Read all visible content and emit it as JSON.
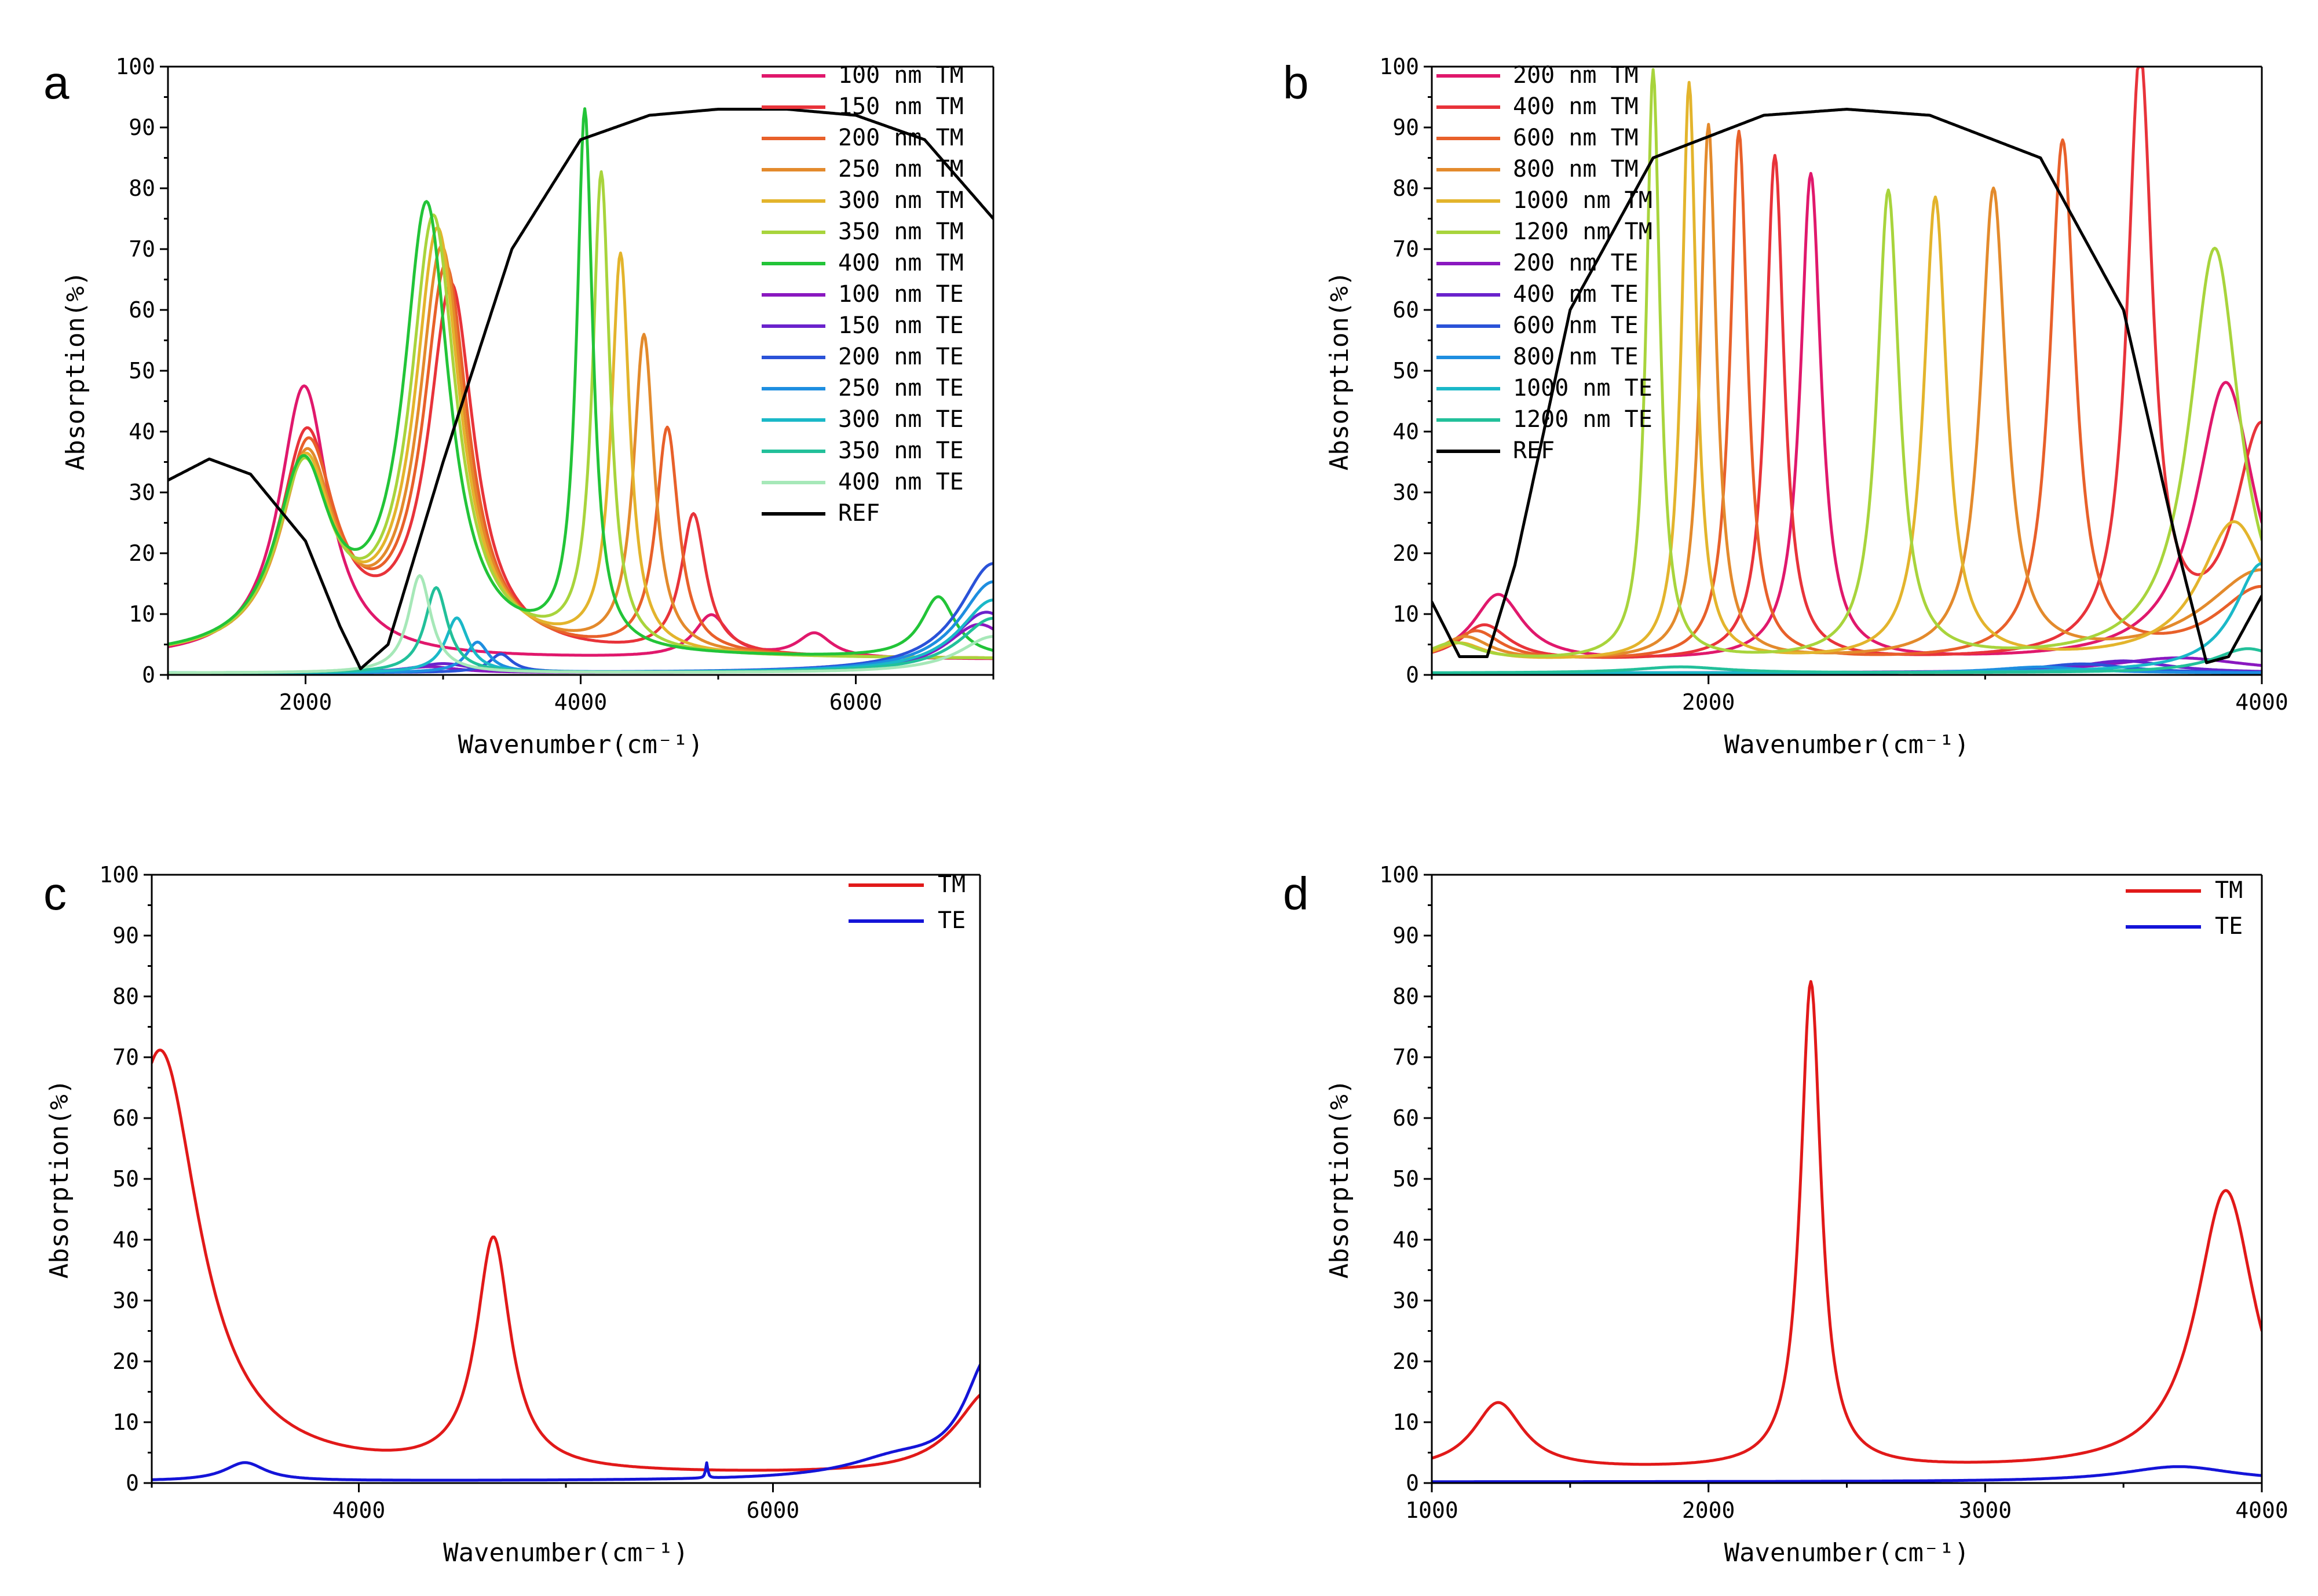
{
  "chart_data": [
    {
      "panel": "a",
      "type": "line",
      "xlabel": "Wavenumber(cm⁻¹)",
      "ylabel": "Absorption(%)",
      "xlim": [
        1000,
        7000
      ],
      "ylim": [
        0,
        100
      ],
      "xticks": [
        2000,
        4000,
        6000
      ],
      "yticks": [
        0,
        10,
        20,
        30,
        40,
        50,
        60,
        70,
        80,
        90,
        100
      ],
      "legend": "top-right",
      "series": [
        {
          "name": "100 nm TM",
          "color": "#e0186c",
          "model": {
            "base": 2.5,
            "peaks": [
              [
                1990,
                45,
                220
              ],
              [
                4950,
                7,
                150
              ],
              [
                5700,
                4,
                150
              ]
            ]
          }
        },
        {
          "name": "150 nm TM",
          "color": "#e8333a",
          "model": {
            "base": 2.5,
            "peaks": [
              [
                2010,
                36,
                240
              ],
              [
                3060,
                60,
                200
              ],
              [
                4820,
                23,
                110
              ]
            ]
          }
        },
        {
          "name": "200 nm TM",
          "color": "#e8602a",
          "model": {
            "base": 2.5,
            "peaks": [
              [
                2020,
                34,
                240
              ],
              [
                3020,
                63,
                200
              ],
              [
                4630,
                37,
                100
              ]
            ]
          }
        },
        {
          "name": "250 nm TM",
          "color": "#e38a2c",
          "model": {
            "base": 2.5,
            "peaks": [
              [
                2010,
                32,
                240
              ],
              [
                2990,
                66,
                200
              ],
              [
                4460,
                52,
                90
              ]
            ]
          }
        },
        {
          "name": "300 nm TM",
          "color": "#e3b42c",
          "model": {
            "base": 2.5,
            "peaks": [
              [
                2000,
                31,
                240
              ],
              [
                2960,
                69,
                200
              ],
              [
                4290,
                65,
                80
              ]
            ]
          }
        },
        {
          "name": "350 nm TM",
          "color": "#a8d43c",
          "model": {
            "base": 2.5,
            "peaks": [
              [
                1990,
                30,
                240
              ],
              [
                2930,
                71,
                200
              ],
              [
                4150,
                78,
                75
              ]
            ]
          }
        },
        {
          "name": "400 nm TM",
          "color": "#22c438",
          "model": {
            "base": 2.5,
            "peaks": [
              [
                1980,
                30,
                240
              ],
              [
                2880,
                73,
                200
              ],
              [
                4030,
                88,
                70
              ],
              [
                6600,
                10,
                150
              ]
            ]
          }
        },
        {
          "name": "100 nm TE",
          "color": "#8a18c0",
          "model": {
            "base": 0.3,
            "peaks": [
              [
                2900,
                1,
                250
              ],
              [
                6900,
                8,
                300
              ]
            ]
          }
        },
        {
          "name": "150 nm TE",
          "color": "#6a22cc",
          "model": {
            "base": 0.3,
            "peaks": [
              [
                3000,
                1.5,
                250
              ],
              [
                6950,
                10,
                300
              ]
            ]
          }
        },
        {
          "name": "200 nm TE",
          "color": "#2a52d8",
          "model": {
            "base": 0.3,
            "peaks": [
              [
                3420,
                3,
                100
              ],
              [
                7000,
                18,
                300
              ]
            ]
          }
        },
        {
          "name": "250 nm TE",
          "color": "#1e8ee0",
          "model": {
            "base": 0.3,
            "peaks": [
              [
                3250,
                5,
                100
              ],
              [
                7000,
                15,
                300
              ]
            ]
          }
        },
        {
          "name": "300 nm TE",
          "color": "#1ab8c8",
          "model": {
            "base": 0.3,
            "peaks": [
              [
                3100,
                9,
                100
              ],
              [
                7000,
                12,
                300
              ]
            ]
          }
        },
        {
          "name": "350 nm TE",
          "color": "#22c09a",
          "model": {
            "base": 0.3,
            "peaks": [
              [
                2950,
                14,
                100
              ],
              [
                7000,
                9,
                300
              ]
            ]
          }
        },
        {
          "name": "400 nm TE",
          "color": "#a6e8b8",
          "model": {
            "base": 0.3,
            "peaks": [
              [
                2830,
                16,
                100
              ],
              [
                7000,
                6,
                300
              ]
            ]
          }
        },
        {
          "name": "REF",
          "color": "#000000",
          "model": {
            "ref": true
          }
        }
      ],
      "ref_points": {
        "x": [
          1000,
          1300,
          1600,
          2000,
          2250,
          2400,
          2600,
          3000,
          3500,
          4000,
          4500,
          5000,
          5500,
          6000,
          6500,
          7000
        ],
        "y": [
          32,
          35.5,
          33,
          22,
          8,
          1,
          5,
          35,
          70,
          88,
          92,
          93,
          93,
          92,
          88,
          75
        ]
      }
    },
    {
      "panel": "b",
      "type": "line",
      "xlabel": "Wavenumber(cm⁻¹)",
      "ylabel": "Absorption(%)",
      "xlim": [
        1000,
        4000
      ],
      "ylim": [
        0,
        100
      ],
      "xticks": [
        2000,
        4000
      ],
      "yticks": [
        0,
        10,
        20,
        30,
        40,
        50,
        60,
        70,
        80,
        90,
        100
      ],
      "legend": "top-left",
      "series": [
        {
          "name": "200 nm TM",
          "color": "#e0186c",
          "model": {
            "base": 2.0,
            "peaks": [
              [
                1240,
                11,
                110
              ],
              [
                2370,
                80,
                45
              ],
              [
                3870,
                46,
                130
              ]
            ]
          }
        },
        {
          "name": "400 nm TM",
          "color": "#e8333a",
          "model": {
            "base": 2.0,
            "peaks": [
              [
                1190,
                6,
                110
              ],
              [
                2240,
                83,
                40
              ],
              [
                3560,
                98,
                55
              ],
              [
                4000,
                38,
                120
              ]
            ]
          }
        },
        {
          "name": "600 nm TM",
          "color": "#e8602a",
          "model": {
            "base": 2.0,
            "peaks": [
              [
                1160,
                5,
                110
              ],
              [
                2110,
                87,
                38
              ],
              [
                3280,
                85,
                55
              ],
              [
                4000,
                12,
                200
              ]
            ]
          }
        },
        {
          "name": "800 nm TM",
          "color": "#e38a2c",
          "model": {
            "base": 2.0,
            "peaks": [
              [
                1120,
                4,
                110
              ],
              [
                2000,
                88,
                35
              ],
              [
                3030,
                77,
                55
              ],
              [
                4000,
                15,
                250
              ]
            ]
          }
        },
        {
          "name": "1000 nm TM",
          "color": "#e3b42c",
          "model": {
            "base": 2.0,
            "peaks": [
              [
                1100,
                3,
                110
              ],
              [
                1930,
                95,
                32
              ],
              [
                2820,
                76,
                50
              ],
              [
                3900,
                23,
                150
              ]
            ]
          }
        },
        {
          "name": "1200 nm TM",
          "color": "#a8d43c",
          "model": {
            "base": 2.0,
            "peaks": [
              [
                1080,
                3,
                110
              ],
              [
                1800,
                97,
                30
              ],
              [
                2650,
                77,
                48
              ],
              [
                3830,
                68,
                110
              ]
            ]
          }
        },
        {
          "name": "200 nm TE",
          "color": "#8a18c0",
          "model": {
            "base": 0.3,
            "peaks": [
              [
                3700,
                2.5,
                300
              ]
            ]
          }
        },
        {
          "name": "400 nm TE",
          "color": "#6a22cc",
          "model": {
            "base": 0.3,
            "peaks": [
              [
                3500,
                2,
                200
              ]
            ]
          }
        },
        {
          "name": "600 nm TE",
          "color": "#2a52d8",
          "model": {
            "base": 0.3,
            "peaks": [
              [
                3350,
                1.5,
                200
              ]
            ]
          }
        },
        {
          "name": "800 nm TE",
          "color": "#1e8ee0",
          "model": {
            "base": 0.3,
            "peaks": [
              [
                3200,
                1,
                200
              ]
            ]
          }
        },
        {
          "name": "1000 nm TE",
          "color": "#1ab8c8",
          "model": {
            "base": 0.3,
            "peaks": [
              [
                4000,
                18,
                120
              ]
            ]
          }
        },
        {
          "name": "1200 nm TE",
          "color": "#22c09a",
          "model": {
            "base": 0.3,
            "peaks": [
              [
                1900,
                1,
                200
              ],
              [
                3950,
                4,
                150
              ]
            ]
          }
        },
        {
          "name": "REF",
          "color": "#000000",
          "model": {
            "ref": true
          }
        }
      ],
      "ref_points": {
        "x": [
          1000,
          1100,
          1200,
          1300,
          1500,
          1800,
          2200,
          2500,
          2800,
          3200,
          3500,
          3700,
          3800,
          3880,
          4000
        ],
        "y": [
          12,
          3,
          3,
          18,
          60,
          85,
          92,
          93,
          92,
          85,
          60,
          20,
          2,
          3,
          13
        ]
      }
    },
    {
      "panel": "c",
      "type": "line",
      "xlabel": "Wavenumber(cm⁻¹)",
      "ylabel": "Absorption(%)",
      "xlim": [
        3000,
        7000
      ],
      "ylim": [
        0,
        100
      ],
      "xticks": [
        4000,
        6000
      ],
      "yticks": [
        0,
        10,
        20,
        30,
        40,
        50,
        60,
        70,
        80,
        90,
        100
      ],
      "legend": "top-right",
      "series": [
        {
          "name": "TM",
          "color": "#e11919",
          "model": {
            "base": 1.0,
            "peaks": [
              [
                3040,
                70,
                230
              ],
              [
                4650,
                38,
                100
              ],
              [
                7050,
                14,
                200
              ]
            ]
          }
        },
        {
          "name": "TE",
          "color": "#1414d8",
          "model": {
            "base": 0.3,
            "peaks": [
              [
                3450,
                3,
                120
              ],
              [
                5680,
                2.5,
                6
              ],
              [
                6600,
                3,
                300
              ],
              [
                7050,
                20,
                150
              ]
            ]
          }
        }
      ]
    },
    {
      "panel": "d",
      "type": "line",
      "xlabel": "Wavenumber(cm⁻¹)",
      "ylabel": "Absorption(%)",
      "xlim": [
        1000,
        4000
      ],
      "ylim": [
        0,
        100
      ],
      "xticks": [
        1000,
        2000,
        3000,
        4000
      ],
      "yticks": [
        0,
        10,
        20,
        30,
        40,
        50,
        60,
        70,
        80,
        90,
        100
      ],
      "legend": "top-right",
      "series": [
        {
          "name": "TM",
          "color": "#e11919",
          "model": {
            "base": 2.0,
            "peaks": [
              [
                1240,
                11,
                110
              ],
              [
                2370,
                80,
                45
              ],
              [
                3870,
                46,
                130
              ]
            ]
          }
        },
        {
          "name": "TE",
          "color": "#1414d8",
          "model": {
            "base": 0.2,
            "peaks": [
              [
                3700,
                2.5,
                250
              ]
            ]
          }
        }
      ]
    }
  ]
}
